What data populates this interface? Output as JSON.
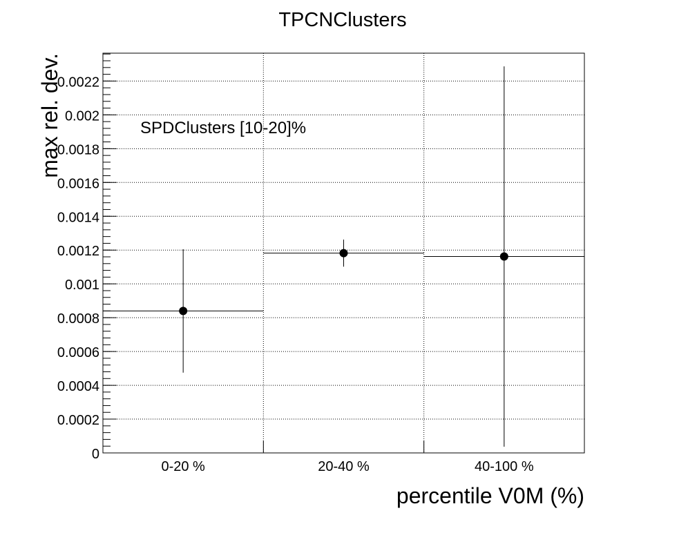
{
  "chart_data": {
    "type": "scatter",
    "title": "TPCNClusters",
    "xlabel": "percentile V0M (%)",
    "ylabel": "max rel. dev.",
    "annotation": "SPDClusters [10-20]%",
    "categories": [
      "0-20 %",
      "20-40 %",
      "40-100 %"
    ],
    "series": [
      {
        "values": [
          0.00084,
          0.001182,
          0.001162
        ],
        "errors": [
          0.000365,
          8e-05,
          0.001125
        ]
      }
    ],
    "ylim": [
      0,
      0.002365
    ],
    "yticks": [
      {
        "value": 0,
        "label": "0"
      },
      {
        "value": 0.0002,
        "label": "0.0002"
      },
      {
        "value": 0.0004,
        "label": "0.0004"
      },
      {
        "value": 0.0006,
        "label": "0.0006"
      },
      {
        "value": 0.0008,
        "label": "0.0008"
      },
      {
        "value": 0.001,
        "label": "0.001"
      },
      {
        "value": 0.0012,
        "label": "0.0012"
      },
      {
        "value": 0.0014,
        "label": "0.0014"
      },
      {
        "value": 0.0016,
        "label": "0.0016"
      },
      {
        "value": 0.0018,
        "label": "0.0018"
      },
      {
        "value": 0.002,
        "label": "0.002"
      },
      {
        "value": 0.0022,
        "label": "0.0022"
      }
    ],
    "grid": true,
    "marker_color": "#000000"
  }
}
